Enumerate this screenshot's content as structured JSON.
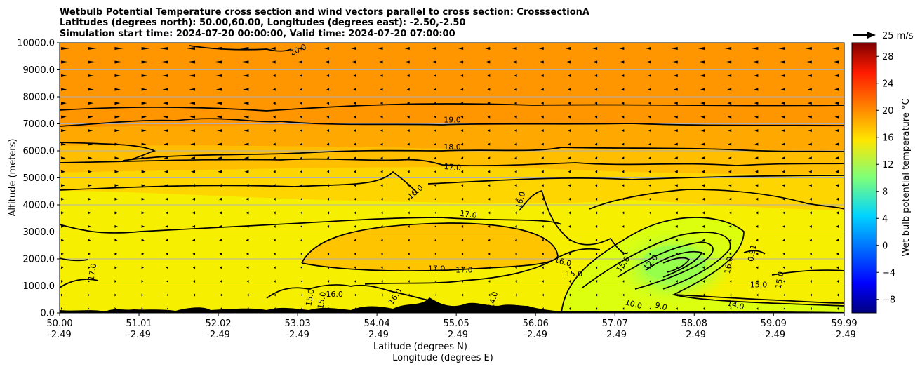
{
  "chart_data": {
    "type": "heatmap",
    "title": [
      "Wetbulb Potential Temperature cross section and wind vectors parallel to cross section: CrosssectionA",
      "Latitudes (degrees north): 50.00,60.00, Longitudes (degrees east): -2.50,-2.50",
      "Simulation start time: 2024-07-20 00:00:00, Valid time: 2024-07-20 07:00:00"
    ],
    "xlabel": "Latitude (degrees N)",
    "xlabel2": "Longitude (degrees E)",
    "ylabel": "Altitude (meters)",
    "colorbar_label": "Wet bulb potential temperature $^\\circ$C",
    "colorbar_label_display": "Wet bulb potential temperature °C",
    "quiver_key": "25 m/s",
    "xlim": [
      50.0,
      59.99
    ],
    "ylim": [
      0,
      10000
    ],
    "x_ticks": [
      {
        "lat": "50.00",
        "lon": "-2.49",
        "value": 50.0
      },
      {
        "lat": "51.01",
        "lon": "-2.49",
        "value": 51.01
      },
      {
        "lat": "52.02",
        "lon": "-2.49",
        "value": 52.02
      },
      {
        "lat": "53.03",
        "lon": "-2.49",
        "value": 53.03
      },
      {
        "lat": "54.04",
        "lon": "-2.49",
        "value": 54.04
      },
      {
        "lat": "55.05",
        "lon": "-2.49",
        "value": 55.05
      },
      {
        "lat": "56.06",
        "lon": "-2.49",
        "value": 56.06
      },
      {
        "lat": "57.07",
        "lon": "-2.49",
        "value": 57.07
      },
      {
        "lat": "58.08",
        "lon": "-2.49",
        "value": 58.08
      },
      {
        "lat": "59.09",
        "lon": "-2.49",
        "value": 59.09
      },
      {
        "lat": "59.99",
        "lon": "-2.49",
        "value": 59.99
      }
    ],
    "y_ticks": [
      "0.0",
      "1000.0",
      "2000.0",
      "3000.0",
      "4000.0",
      "5000.0",
      "6000.0",
      "7000.0",
      "8000.0",
      "9000.0",
      "10000.0"
    ],
    "y_tick_values": [
      0,
      1000,
      2000,
      3000,
      4000,
      5000,
      6000,
      7000,
      8000,
      9000,
      10000
    ],
    "grid": "horizontal",
    "colorbar": {
      "vmin": -10,
      "vmax": 30,
      "ticks": [
        "28",
        "24",
        "20",
        "16",
        "12",
        "8",
        "4",
        "0",
        "−4",
        "−8"
      ],
      "tick_values": [
        28,
        24,
        20,
        16,
        12,
        8,
        4,
        0,
        -4,
        -8
      ],
      "colormap": "jet"
    },
    "contour_labels": [
      {
        "text": "20.0",
        "lat": 53.05,
        "alt": 9650,
        "angle": -25
      },
      {
        "text": "19.0",
        "lat": 55.0,
        "alt": 7050,
        "angle": 0
      },
      {
        "text": "18.0",
        "lat": 55.0,
        "alt": 6050,
        "angle": 0
      },
      {
        "text": "17.0",
        "lat": 55.0,
        "alt": 5300,
        "angle": 5
      },
      {
        "text": "16.0",
        "lat": 54.55,
        "alt": 4400,
        "angle": -40
      },
      {
        "text": "16.0",
        "lat": 55.9,
        "alt": 4150,
        "angle": -75
      },
      {
        "text": "17.0",
        "lat": 55.2,
        "alt": 3550,
        "angle": 8
      },
      {
        "text": "17.0",
        "lat": 54.8,
        "alt": 1550,
        "angle": 0
      },
      {
        "text": "17.0",
        "lat": 55.15,
        "alt": 1500,
        "angle": 0
      },
      {
        "text": "17.0",
        "lat": 50.45,
        "alt": 1500,
        "angle": -80
      },
      {
        "text": "16.0",
        "lat": 56.4,
        "alt": 1800,
        "angle": 15
      },
      {
        "text": "15.0",
        "lat": 56.55,
        "alt": 1350,
        "angle": 0
      },
      {
        "text": "15.0",
        "lat": 57.2,
        "alt": 1750,
        "angle": -55
      },
      {
        "text": "12.0",
        "lat": 57.55,
        "alt": 1800,
        "angle": -50
      },
      {
        "text": "16.0",
        "lat": 53.5,
        "alt": 600,
        "angle": 0
      },
      {
        "text": "15.0",
        "lat": 53.22,
        "alt": 550,
        "angle": -80
      },
      {
        "text": "15.0",
        "lat": 53.37,
        "alt": 450,
        "angle": -80
      },
      {
        "text": "16.0",
        "lat": 54.3,
        "alt": 550,
        "angle": -55
      },
      {
        "text": "14.0",
        "lat": 55.55,
        "alt": 450,
        "angle": -75
      },
      {
        "text": "10.0",
        "lat": 57.3,
        "alt": 230,
        "angle": 15
      },
      {
        "text": "9.0",
        "lat": 57.65,
        "alt": 150,
        "angle": 15
      },
      {
        "text": "16.0",
        "lat": 58.55,
        "alt": 1750,
        "angle": -80
      },
      {
        "text": "0.91",
        "lat": 58.85,
        "alt": 2200,
        "angle": -80
      },
      {
        "text": "15.0",
        "lat": 59.2,
        "alt": 1200,
        "angle": -80
      },
      {
        "text": "15.0",
        "lat": 58.9,
        "alt": 950,
        "angle": 0
      },
      {
        "text": "14.0",
        "lat": 58.6,
        "alt": 200,
        "angle": 15
      }
    ]
  }
}
